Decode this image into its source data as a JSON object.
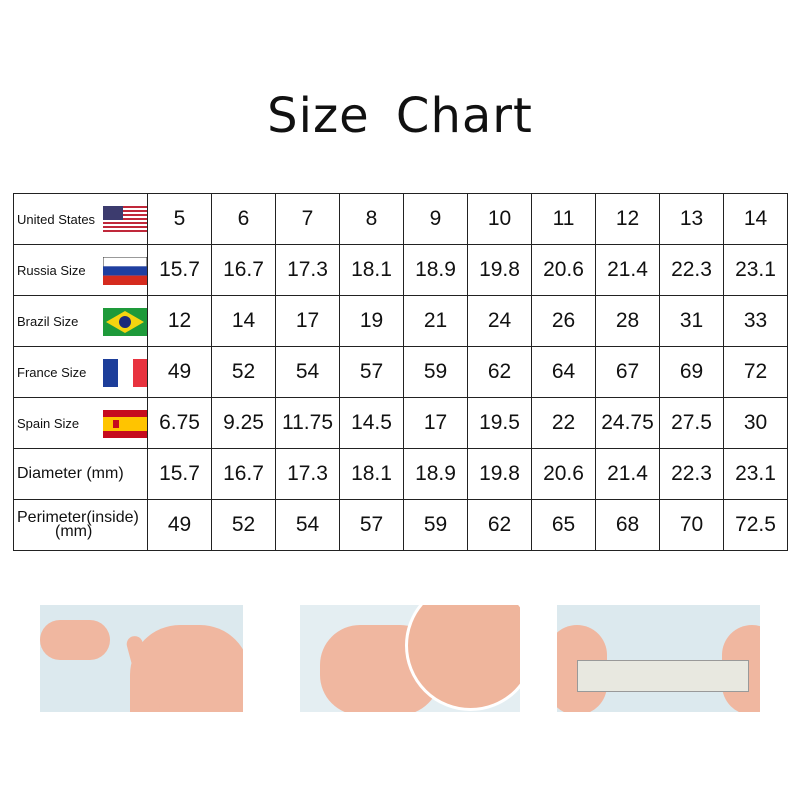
{
  "title": "Size Chart",
  "table": {
    "rows": [
      {
        "label": "United States",
        "flag": "us-flag-icon",
        "values": [
          "5",
          "6",
          "7",
          "8",
          "9",
          "10",
          "11",
          "12",
          "13",
          "14"
        ]
      },
      {
        "label": "Russia Size",
        "flag": "russia-flag-icon",
        "values": [
          "15.7",
          "16.7",
          "17.3",
          "18.1",
          "18.9",
          "19.8",
          "20.6",
          "21.4",
          "22.3",
          "23.1"
        ]
      },
      {
        "label": "Brazil Size",
        "flag": "brazil-flag-icon",
        "values": [
          "12",
          "14",
          "17",
          "19",
          "21",
          "24",
          "26",
          "28",
          "31",
          "33"
        ]
      },
      {
        "label": "France Size",
        "flag": "france-flag-icon",
        "values": [
          "49",
          "52",
          "54",
          "57",
          "59",
          "62",
          "64",
          "67",
          "69",
          "72"
        ]
      },
      {
        "label": "Spain Size",
        "flag": "spain-flag-icon",
        "values": [
          "6.75",
          "9.25",
          "11.75",
          "14.5",
          "17",
          "19.5",
          "22",
          "24.75",
          "27.5",
          "30"
        ]
      },
      {
        "label": "Diameter (mm)",
        "values": [
          "15.7",
          "16.7",
          "17.3",
          "18.1",
          "18.9",
          "19.8",
          "20.6",
          "21.4",
          "22.3",
          "23.1"
        ]
      },
      {
        "label": "Perimeter(inside)",
        "label2": "(mm)",
        "values": [
          "49",
          "52",
          "54",
          "57",
          "59",
          "62",
          "65",
          "68",
          "70",
          "72.5"
        ]
      }
    ]
  },
  "colors": {
    "us_red": "#c0283a",
    "us_blue": "#3c3b6e",
    "russia_blue": "#1f3fa0",
    "russia_red": "#d52b1e",
    "brazil_green": "#1e9a3a",
    "brazil_yellow": "#f5d410",
    "france_blue": "#1d3e9a",
    "france_red": "#e8333f",
    "spain_red": "#c60b1e",
    "spain_yellow": "#ffc400"
  }
}
